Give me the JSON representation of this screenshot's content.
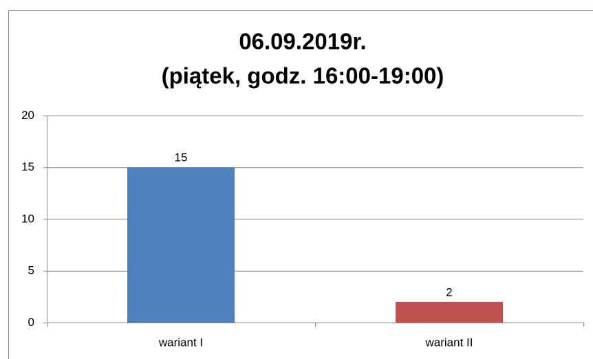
{
  "chart_data": {
    "type": "bar",
    "title": [
      "06.09.2019r.",
      "(piątek, godz. 16:00-19:00)"
    ],
    "categories": [
      "wariant I",
      "wariant II"
    ],
    "values": [
      15,
      2
    ],
    "colors": [
      "#4f81bd",
      "#c0504d"
    ],
    "ylim": [
      0,
      20
    ],
    "yticks": [
      0,
      5,
      10,
      15,
      20
    ],
    "grid": true
  }
}
